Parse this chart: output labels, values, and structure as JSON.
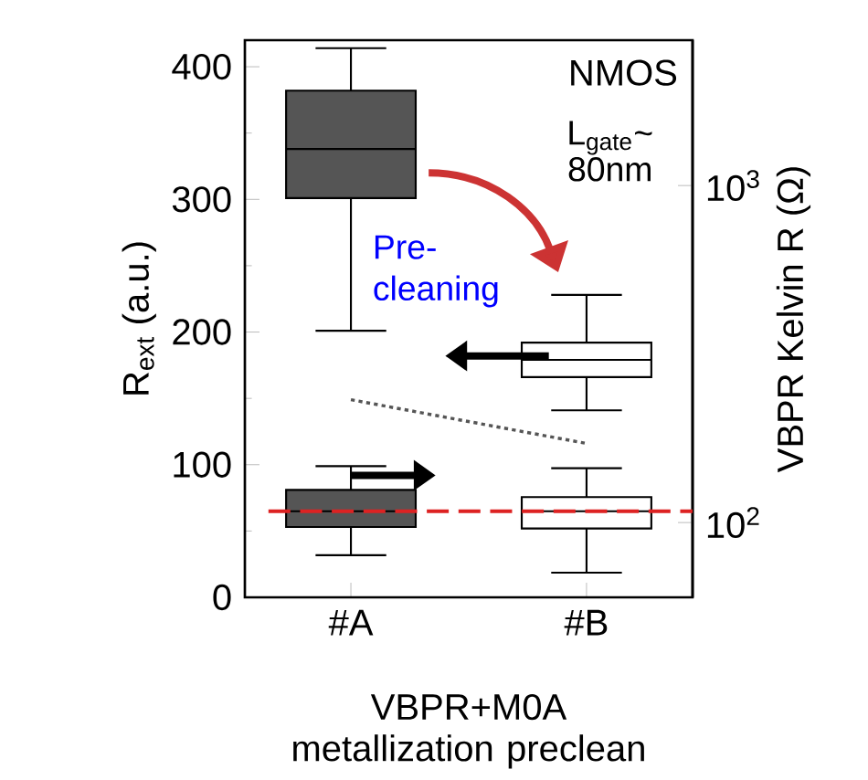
{
  "chart_data": {
    "type": "box",
    "categories": [
      "#A",
      "#B"
    ],
    "xlabel": "VBPR+M0A metallization preclean",
    "ylabel": "R$_{ext}$ (a.u.)",
    "y2label": "VBPR Kelvin R (Ω)",
    "ylim": [
      0,
      420
    ],
    "yticks": [
      0,
      100,
      200,
      300,
      400
    ],
    "y2lim": [
      60,
      2700
    ],
    "y2ticks": [
      {
        "value": 100,
        "label": "10$^{2}$"
      },
      {
        "value": 1000,
        "label": "10$^{3}$"
      }
    ],
    "log": "y2",
    "series": [
      {
        "colors": [
          "#555555",
          "#ffffff"
        ],
        "boxes": [
          {
            "low": 201,
            "q1": 301,
            "median": 338,
            "q3": 382,
            "high": 414
          },
          {
            "low": 141,
            "q1": 166,
            "median": 179,
            "q3": 192,
            "high": 228
          }
        ]
      },
      {
        "axis": "y2",
        "colors": [
          "#555555",
          "#ffffff"
        ],
        "boxes": [
          {
            "low": 80,
            "q1": 97,
            "median": 108,
            "q3": 125,
            "high": 147
          },
          {
            "low": 71,
            "q1": 96,
            "median": 108,
            "q3": 119,
            "high": 145
          }
        ]
      },
      {
        "type": "line",
        "color": "#555555",
        "line_style": "dotted",
        "values": [
          149,
          116
        ]
      }
    ],
    "ref_lines": [
      {
        "axis": "y2",
        "value": 108,
        "color": "#dd2222",
        "line_style": "dashed"
      }
    ],
    "annotations": [
      "NMOS",
      "L$_{gate}$~ 80nm",
      "Pre-cleaning"
    ]
  }
}
